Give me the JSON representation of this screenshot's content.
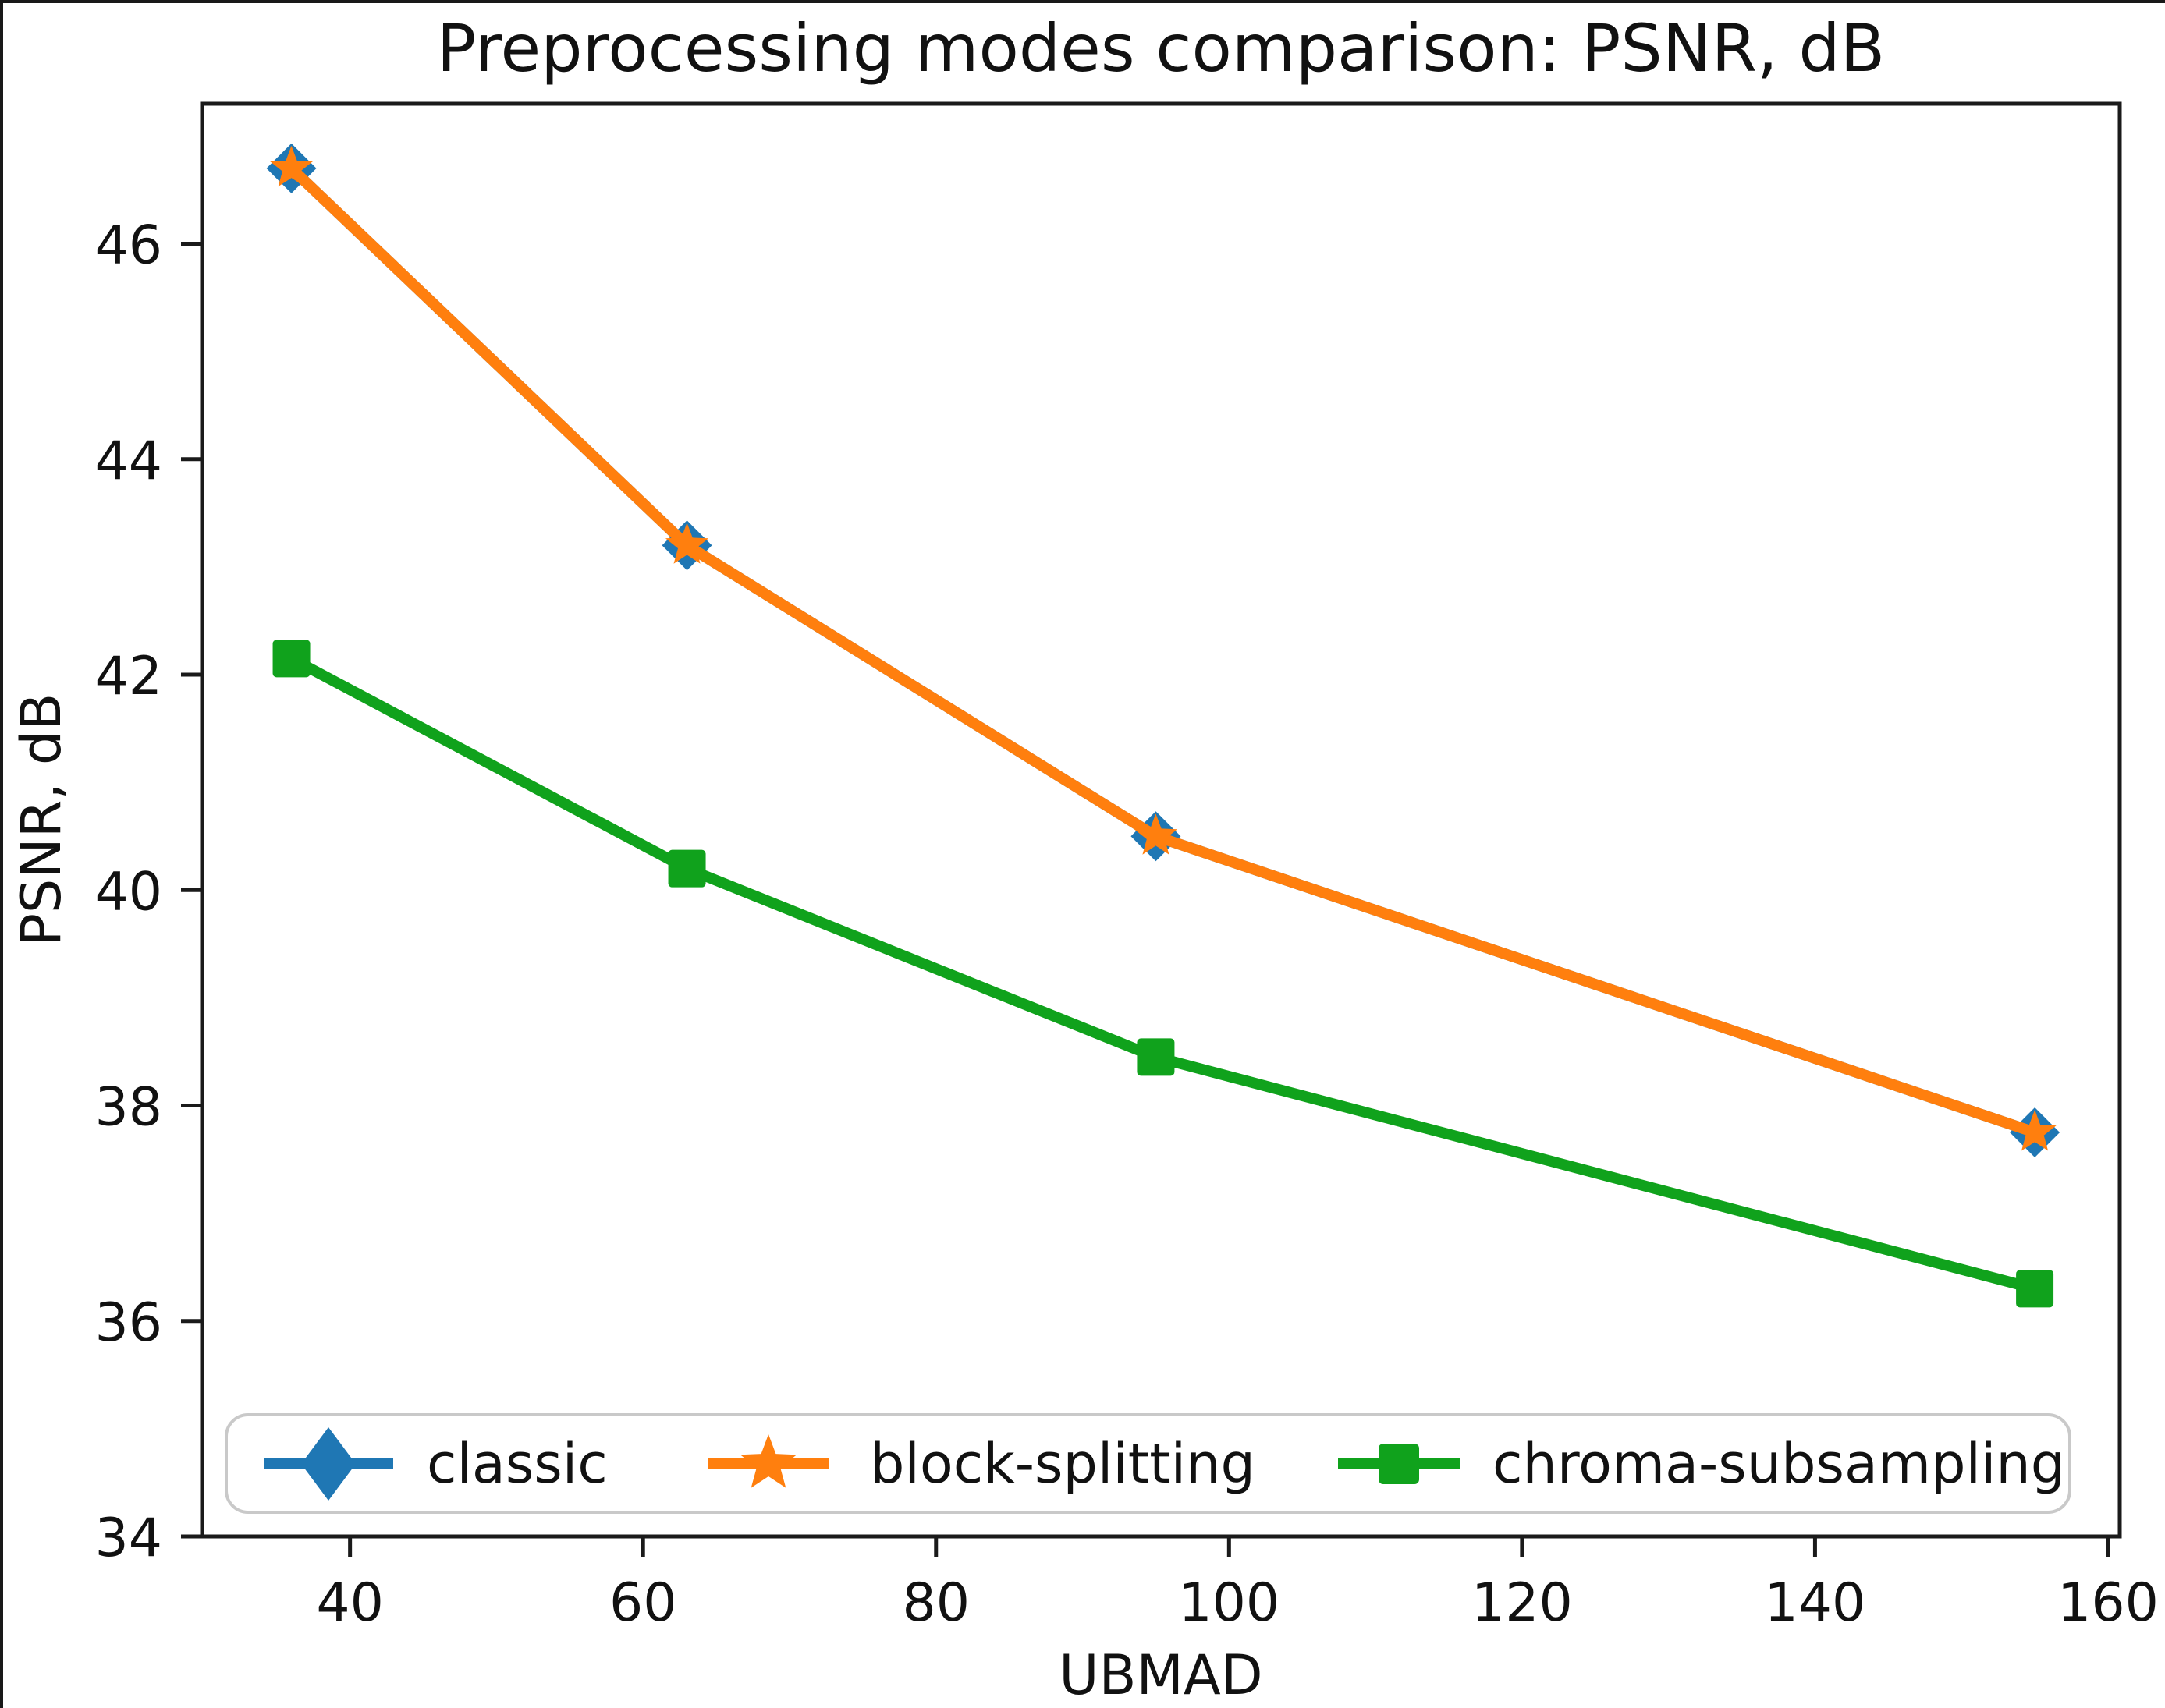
{
  "chart_data": {
    "type": "line",
    "title": "Preprocessing modes comparison: PSNR, dB",
    "xlabel": "UBMAD",
    "ylabel": "PSNR, dB",
    "x": [
      36,
      63,
      95,
      155
    ],
    "series": [
      {
        "name": "classic",
        "color": "#1f77b4",
        "marker": "diamond",
        "values": [
          46.7,
          43.2,
          40.5,
          37.75
        ]
      },
      {
        "name": "block-splitting",
        "color": "#ff7f0e",
        "marker": "star",
        "values": [
          46.7,
          43.2,
          40.5,
          37.75
        ]
      },
      {
        "name": "chroma-subsampling",
        "color": "#10a21c",
        "marker": "square",
        "values": [
          42.15,
          40.2,
          38.45,
          36.3
        ]
      }
    ],
    "xticks": [
      40,
      60,
      80,
      100,
      120,
      140,
      160
    ],
    "yticks": [
      34,
      36,
      38,
      40,
      42,
      44,
      46
    ],
    "xlim": [
      29.9,
      160.8
    ],
    "ylim": [
      34,
      47.3
    ],
    "grid": false,
    "legend_position": "lower center, horizontal",
    "axis_color": "#1a1a1a",
    "text_color": "#111111",
    "legend_border_color": "#c9c9c9"
  }
}
